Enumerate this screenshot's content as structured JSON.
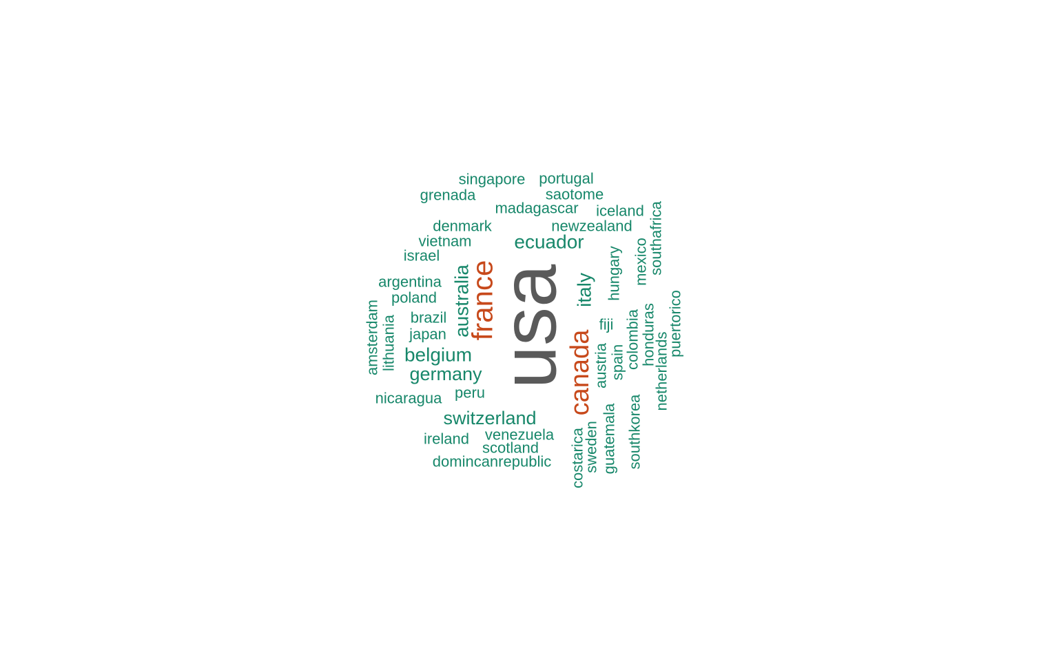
{
  "colors": {
    "primary": "#5a5a5a",
    "secondary": "#c7491b",
    "tertiary": "#17876a"
  },
  "words": [
    {
      "text": "usa",
      "weight": 10,
      "color": "primary"
    },
    {
      "text": "france",
      "weight": 5,
      "color": "secondary"
    },
    {
      "text": "canada",
      "weight": 5,
      "color": "secondary"
    },
    {
      "text": "ecuador",
      "weight": 3,
      "color": "tertiary"
    },
    {
      "text": "australia",
      "weight": 3,
      "color": "tertiary"
    },
    {
      "text": "italy",
      "weight": 3,
      "color": "tertiary"
    },
    {
      "text": "belgium",
      "weight": 3,
      "color": "tertiary"
    },
    {
      "text": "germany",
      "weight": 3,
      "color": "tertiary"
    },
    {
      "text": "switzerland",
      "weight": 3,
      "color": "tertiary"
    },
    {
      "text": "singapore",
      "weight": 2,
      "color": "tertiary"
    },
    {
      "text": "portugal",
      "weight": 2,
      "color": "tertiary"
    },
    {
      "text": "grenada",
      "weight": 2,
      "color": "tertiary"
    },
    {
      "text": "saotome",
      "weight": 2,
      "color": "tertiary"
    },
    {
      "text": "madagascar",
      "weight": 2,
      "color": "tertiary"
    },
    {
      "text": "iceland",
      "weight": 2,
      "color": "tertiary"
    },
    {
      "text": "denmark",
      "weight": 2,
      "color": "tertiary"
    },
    {
      "text": "newzealand",
      "weight": 2,
      "color": "tertiary"
    },
    {
      "text": "vietnam",
      "weight": 2,
      "color": "tertiary"
    },
    {
      "text": "israel",
      "weight": 2,
      "color": "tertiary"
    },
    {
      "text": "argentina",
      "weight": 2,
      "color": "tertiary"
    },
    {
      "text": "poland",
      "weight": 2,
      "color": "tertiary"
    },
    {
      "text": "brazil",
      "weight": 2,
      "color": "tertiary"
    },
    {
      "text": "japan",
      "weight": 2,
      "color": "tertiary"
    },
    {
      "text": "peru",
      "weight": 2,
      "color": "tertiary"
    },
    {
      "text": "nicaragua",
      "weight": 2,
      "color": "tertiary"
    },
    {
      "text": "ireland",
      "weight": 2,
      "color": "tertiary"
    },
    {
      "text": "venezuela",
      "weight": 2,
      "color": "tertiary"
    },
    {
      "text": "scotland",
      "weight": 2,
      "color": "tertiary"
    },
    {
      "text": "domincanrepublic",
      "weight": 2,
      "color": "tertiary"
    },
    {
      "text": "amsterdam",
      "weight": 2,
      "color": "tertiary"
    },
    {
      "text": "lithuania",
      "weight": 2,
      "color": "tertiary"
    },
    {
      "text": "hungary",
      "weight": 2,
      "color": "tertiary"
    },
    {
      "text": "mexico",
      "weight": 2,
      "color": "tertiary"
    },
    {
      "text": "southafrica",
      "weight": 2,
      "color": "tertiary"
    },
    {
      "text": "fiji",
      "weight": 2,
      "color": "tertiary"
    },
    {
      "text": "puertorico",
      "weight": 2,
      "color": "tertiary"
    },
    {
      "text": "colombia",
      "weight": 2,
      "color": "tertiary"
    },
    {
      "text": "honduras",
      "weight": 2,
      "color": "tertiary"
    },
    {
      "text": "austria",
      "weight": 2,
      "color": "tertiary"
    },
    {
      "text": "spain",
      "weight": 2,
      "color": "tertiary"
    },
    {
      "text": "netherlands",
      "weight": 2,
      "color": "tertiary"
    },
    {
      "text": "guatemala",
      "weight": 2,
      "color": "tertiary"
    },
    {
      "text": "southkorea",
      "weight": 2,
      "color": "tertiary"
    },
    {
      "text": "sweden",
      "weight": 2,
      "color": "tertiary"
    },
    {
      "text": "costarica",
      "weight": 2,
      "color": "tertiary"
    }
  ]
}
